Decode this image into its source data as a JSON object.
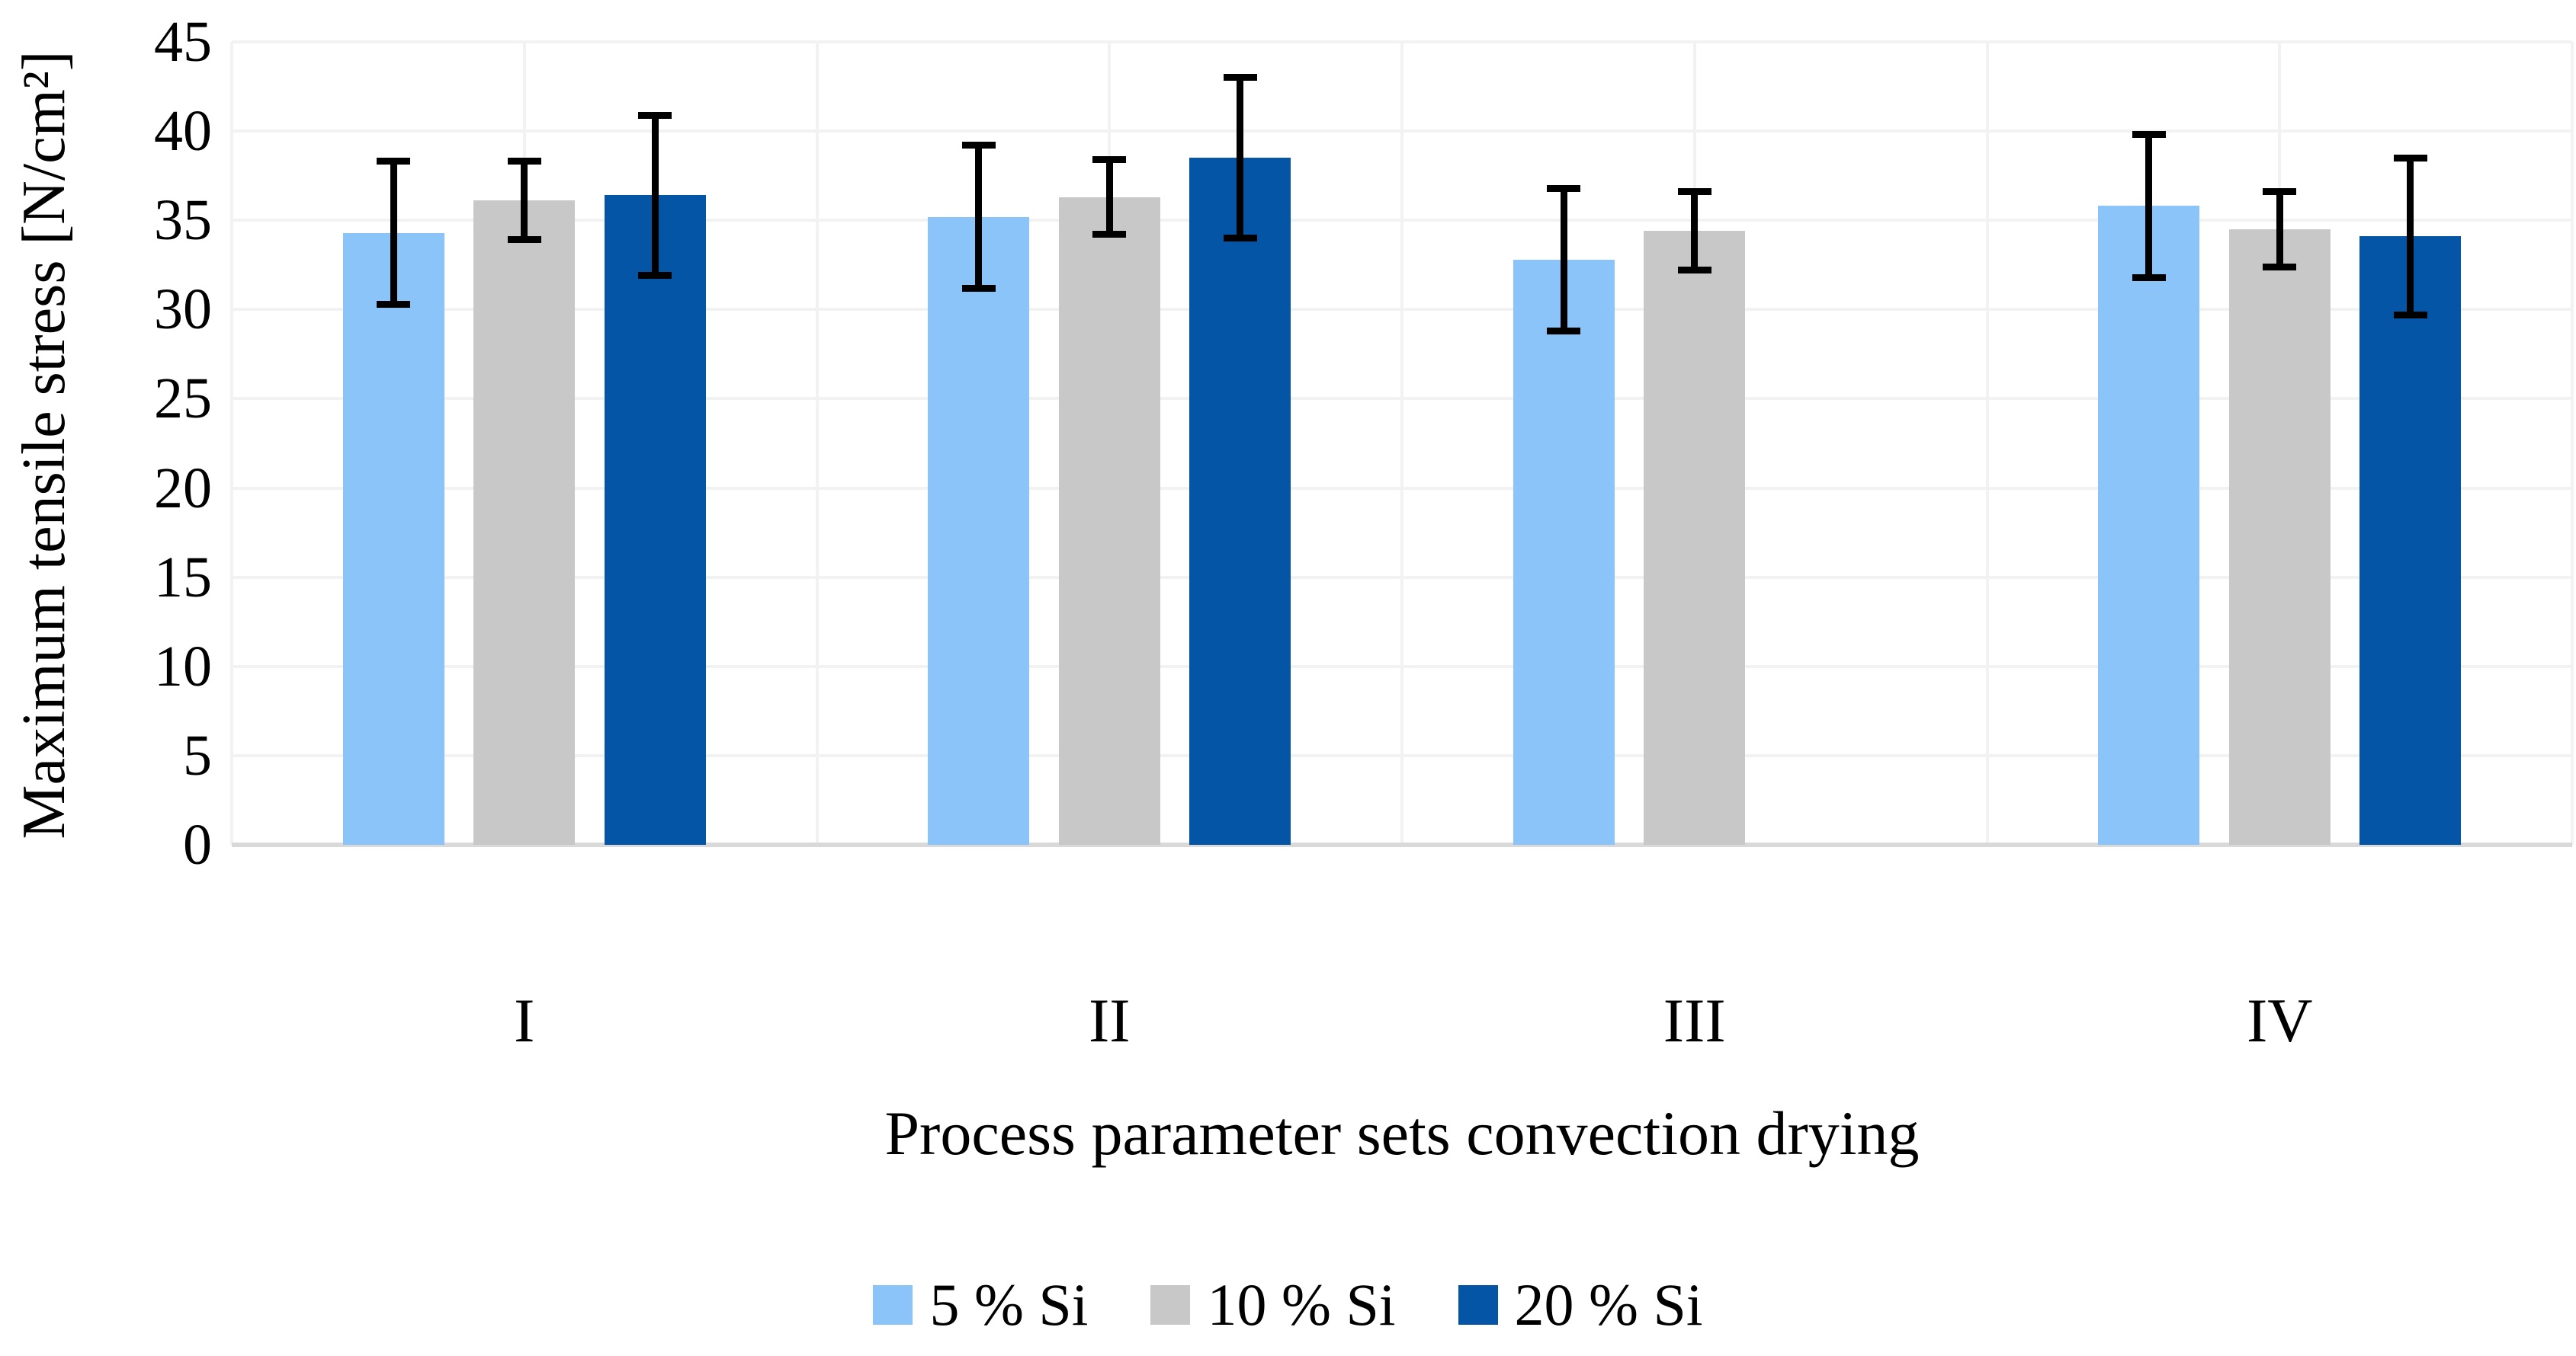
{
  "figure": {
    "background": "#FFFFFF",
    "text_color": "#000000"
  },
  "chart_data": {
    "type": "bar",
    "title": "",
    "xlabel": "Process parameter sets convection drying",
    "ylabel": "Maximum tensile stress [N/cm²]",
    "categories": [
      "I",
      "II",
      "III",
      "IV"
    ],
    "series": [
      {
        "name": "5 % Si",
        "color": "#8AC4F9",
        "values": [
          34.3,
          35.2,
          32.8,
          35.8
        ],
        "errors": [
          4.0,
          4.0,
          4.0,
          4.0
        ]
      },
      {
        "name": "10 % Si",
        "color": "#C8C8C8",
        "values": [
          36.1,
          36.3,
          34.4,
          34.5
        ],
        "errors": [
          2.2,
          2.1,
          2.2,
          2.1
        ]
      },
      {
        "name": "20 % Si",
        "color": "#0455A5",
        "values": [
          36.4,
          38.5,
          null,
          34.1
        ],
        "errors": [
          4.5,
          4.5,
          null,
          4.4
        ]
      }
    ],
    "ylim": [
      0,
      45
    ],
    "ytick_step": 5,
    "yticks": [
      0,
      5,
      10,
      15,
      20,
      25,
      30,
      35,
      40,
      45
    ],
    "grid": true,
    "vertical_grid_divisions": 8,
    "legend_position": "bottom",
    "error_bar_color": "#000000",
    "gridline_color": "#F2F2F2",
    "axis_line_color": "#D9D9D9"
  }
}
